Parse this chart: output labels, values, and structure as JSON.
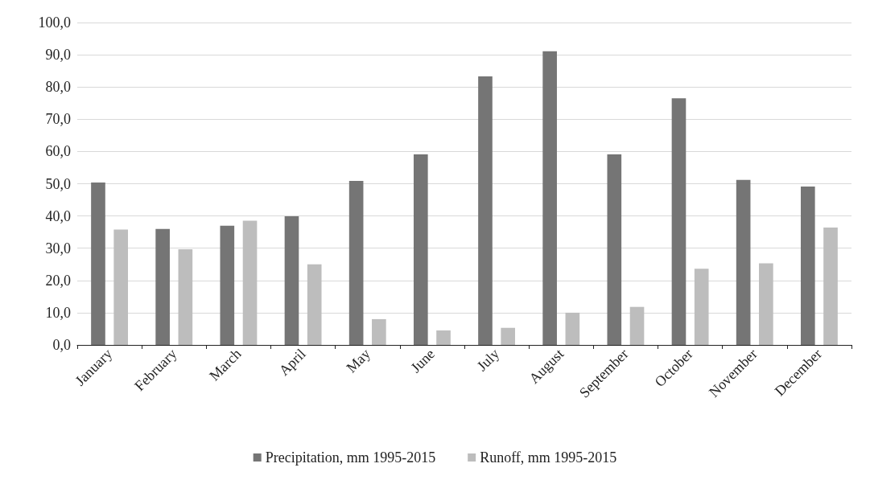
{
  "chart_data": {
    "type": "bar",
    "categories": [
      "January",
      "February",
      "March",
      "April",
      "May",
      "June",
      "July",
      "August",
      "September",
      "October",
      "November",
      "December"
    ],
    "series": [
      {
        "name": "Precipitation, mm 1995-2015",
        "color": "#757575",
        "values": [
          50.4,
          36.0,
          37.0,
          39.9,
          50.9,
          59.1,
          83.3,
          91.1,
          59.1,
          76.5,
          51.2,
          49.1
        ]
      },
      {
        "name": "Runoff, mm 1995-2015",
        "color": "#bdbdbd",
        "values": [
          35.8,
          29.7,
          38.5,
          25.0,
          8.0,
          4.5,
          5.3,
          10.0,
          11.8,
          23.6,
          25.3,
          36.4
        ]
      }
    ],
    "ylim": [
      0,
      100
    ],
    "yticks": [
      {
        "value": 0,
        "label": "0,0"
      },
      {
        "value": 10,
        "label": "10,0"
      },
      {
        "value": 20,
        "label": "20,0"
      },
      {
        "value": 30,
        "label": "30,0"
      },
      {
        "value": 40,
        "label": "40,0"
      },
      {
        "value": 50,
        "label": "50,0"
      },
      {
        "value": 60,
        "label": "60,0"
      },
      {
        "value": 70,
        "label": "70,0"
      },
      {
        "value": 80,
        "label": "80,0"
      },
      {
        "value": 90,
        "label": "90,0"
      },
      {
        "value": 100,
        "label": "100,0"
      }
    ],
    "grid": "y",
    "legend": "bottom"
  }
}
